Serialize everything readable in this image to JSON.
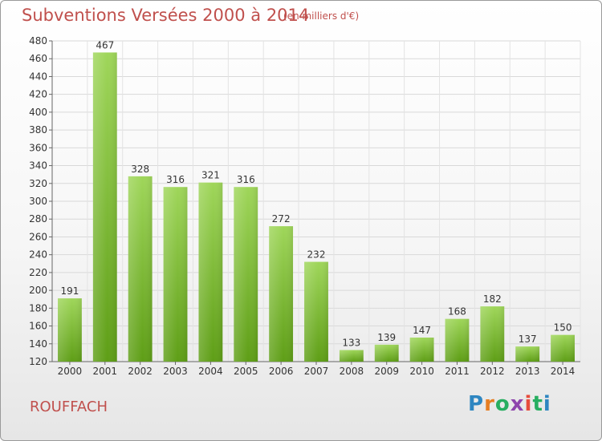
{
  "header": {
    "title": "Subventions Versées 2000 à 2014",
    "subtitle": "(en milliers d'€)"
  },
  "footer": {
    "commune": "ROUFFACH",
    "logo": {
      "letters": [
        "P",
        "r",
        "o",
        "x",
        "i",
        "t",
        "i"
      ],
      "colors": [
        "#2e86c1",
        "#e67e22",
        "#27ae60",
        "#8e44ad",
        "#e74c3c",
        "#27ae60",
        "#2e86c1"
      ]
    }
  },
  "chart_data": {
    "type": "bar",
    "categories": [
      "2000",
      "2001",
      "2002",
      "2003",
      "2004",
      "2005",
      "2006",
      "2007",
      "2008",
      "2009",
      "2010",
      "2011",
      "2012",
      "2013",
      "2014"
    ],
    "values": [
      191,
      467,
      328,
      316,
      321,
      316,
      272,
      232,
      133,
      139,
      147,
      168,
      182,
      137,
      150
    ],
    "title": "Subventions Versées 2000 à 2014",
    "xlabel": "",
    "ylabel": "",
    "ylim": [
      120,
      480
    ],
    "yticks": [
      120,
      140,
      160,
      180,
      200,
      220,
      240,
      260,
      280,
      300,
      320,
      340,
      360,
      380,
      400,
      420,
      440,
      460,
      480
    ],
    "grid": true,
    "bar_color_top": "#9fd65a",
    "bar_color_bottom": "#5e9e16"
  }
}
